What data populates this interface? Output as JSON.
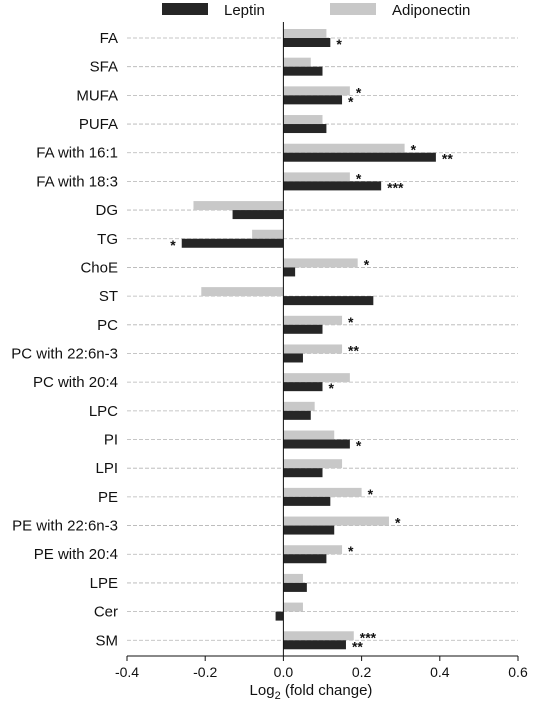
{
  "chart_data": {
    "type": "bar",
    "orientation": "horizontal",
    "xlabel": "Log2 (fold change)",
    "xlabel_base": "Log",
    "xlabel_sub": "2",
    "xlabel_rest": " (fold change)",
    "xlim": [
      -0.4,
      0.6
    ],
    "xticks": [
      -0.4,
      -0.2,
      0.0,
      0.2,
      0.4,
      0.6
    ],
    "xtick_labels": [
      "-0.4",
      "-0.2",
      "0.0",
      "0.2",
      "0.4",
      "0.6"
    ],
    "grid": "horizontal dashed",
    "legend_position": "top",
    "categories": [
      "FA",
      "SFA",
      "MUFA",
      "PUFA",
      "FA with 16:1",
      "FA with 18:3",
      "DG",
      "TG",
      "ChoE",
      "ST",
      "PC",
      "PC with 22:6n-3",
      "PC with 20:4",
      "LPC",
      "PI",
      "LPI",
      "PE",
      "PE with 22:6n-3",
      "PE with 20:4",
      "LPE",
      "Cer",
      "SM"
    ],
    "series": [
      {
        "name": "Adiponectin",
        "color": "#c8c8c8",
        "values": [
          0.11,
          0.07,
          0.17,
          0.1,
          0.31,
          0.17,
          -0.23,
          -0.08,
          0.19,
          -0.21,
          0.15,
          0.15,
          0.17,
          0.08,
          0.13,
          0.15,
          0.2,
          0.27,
          0.15,
          0.05,
          0.05,
          0.18
        ],
        "significance": [
          "",
          "",
          "*",
          "",
          "*",
          "*",
          "",
          "",
          "*",
          "",
          "*",
          "**",
          "",
          "",
          "",
          "",
          "*",
          "*",
          "*",
          "",
          "",
          "***"
        ]
      },
      {
        "name": "Leptin",
        "color": "#262626",
        "values": [
          0.12,
          0.1,
          0.15,
          0.11,
          0.39,
          0.25,
          -0.13,
          -0.26,
          0.03,
          0.23,
          0.1,
          0.05,
          0.1,
          0.07,
          0.17,
          0.1,
          0.12,
          0.13,
          0.11,
          0.06,
          -0.02,
          0.16
        ],
        "significance": [
          "*",
          "",
          "*",
          "",
          "**",
          "***",
          "",
          "*",
          "",
          "",
          "",
          "",
          "*",
          "",
          "*",
          "",
          "",
          "",
          "",
          "",
          "",
          "**"
        ]
      }
    ]
  }
}
